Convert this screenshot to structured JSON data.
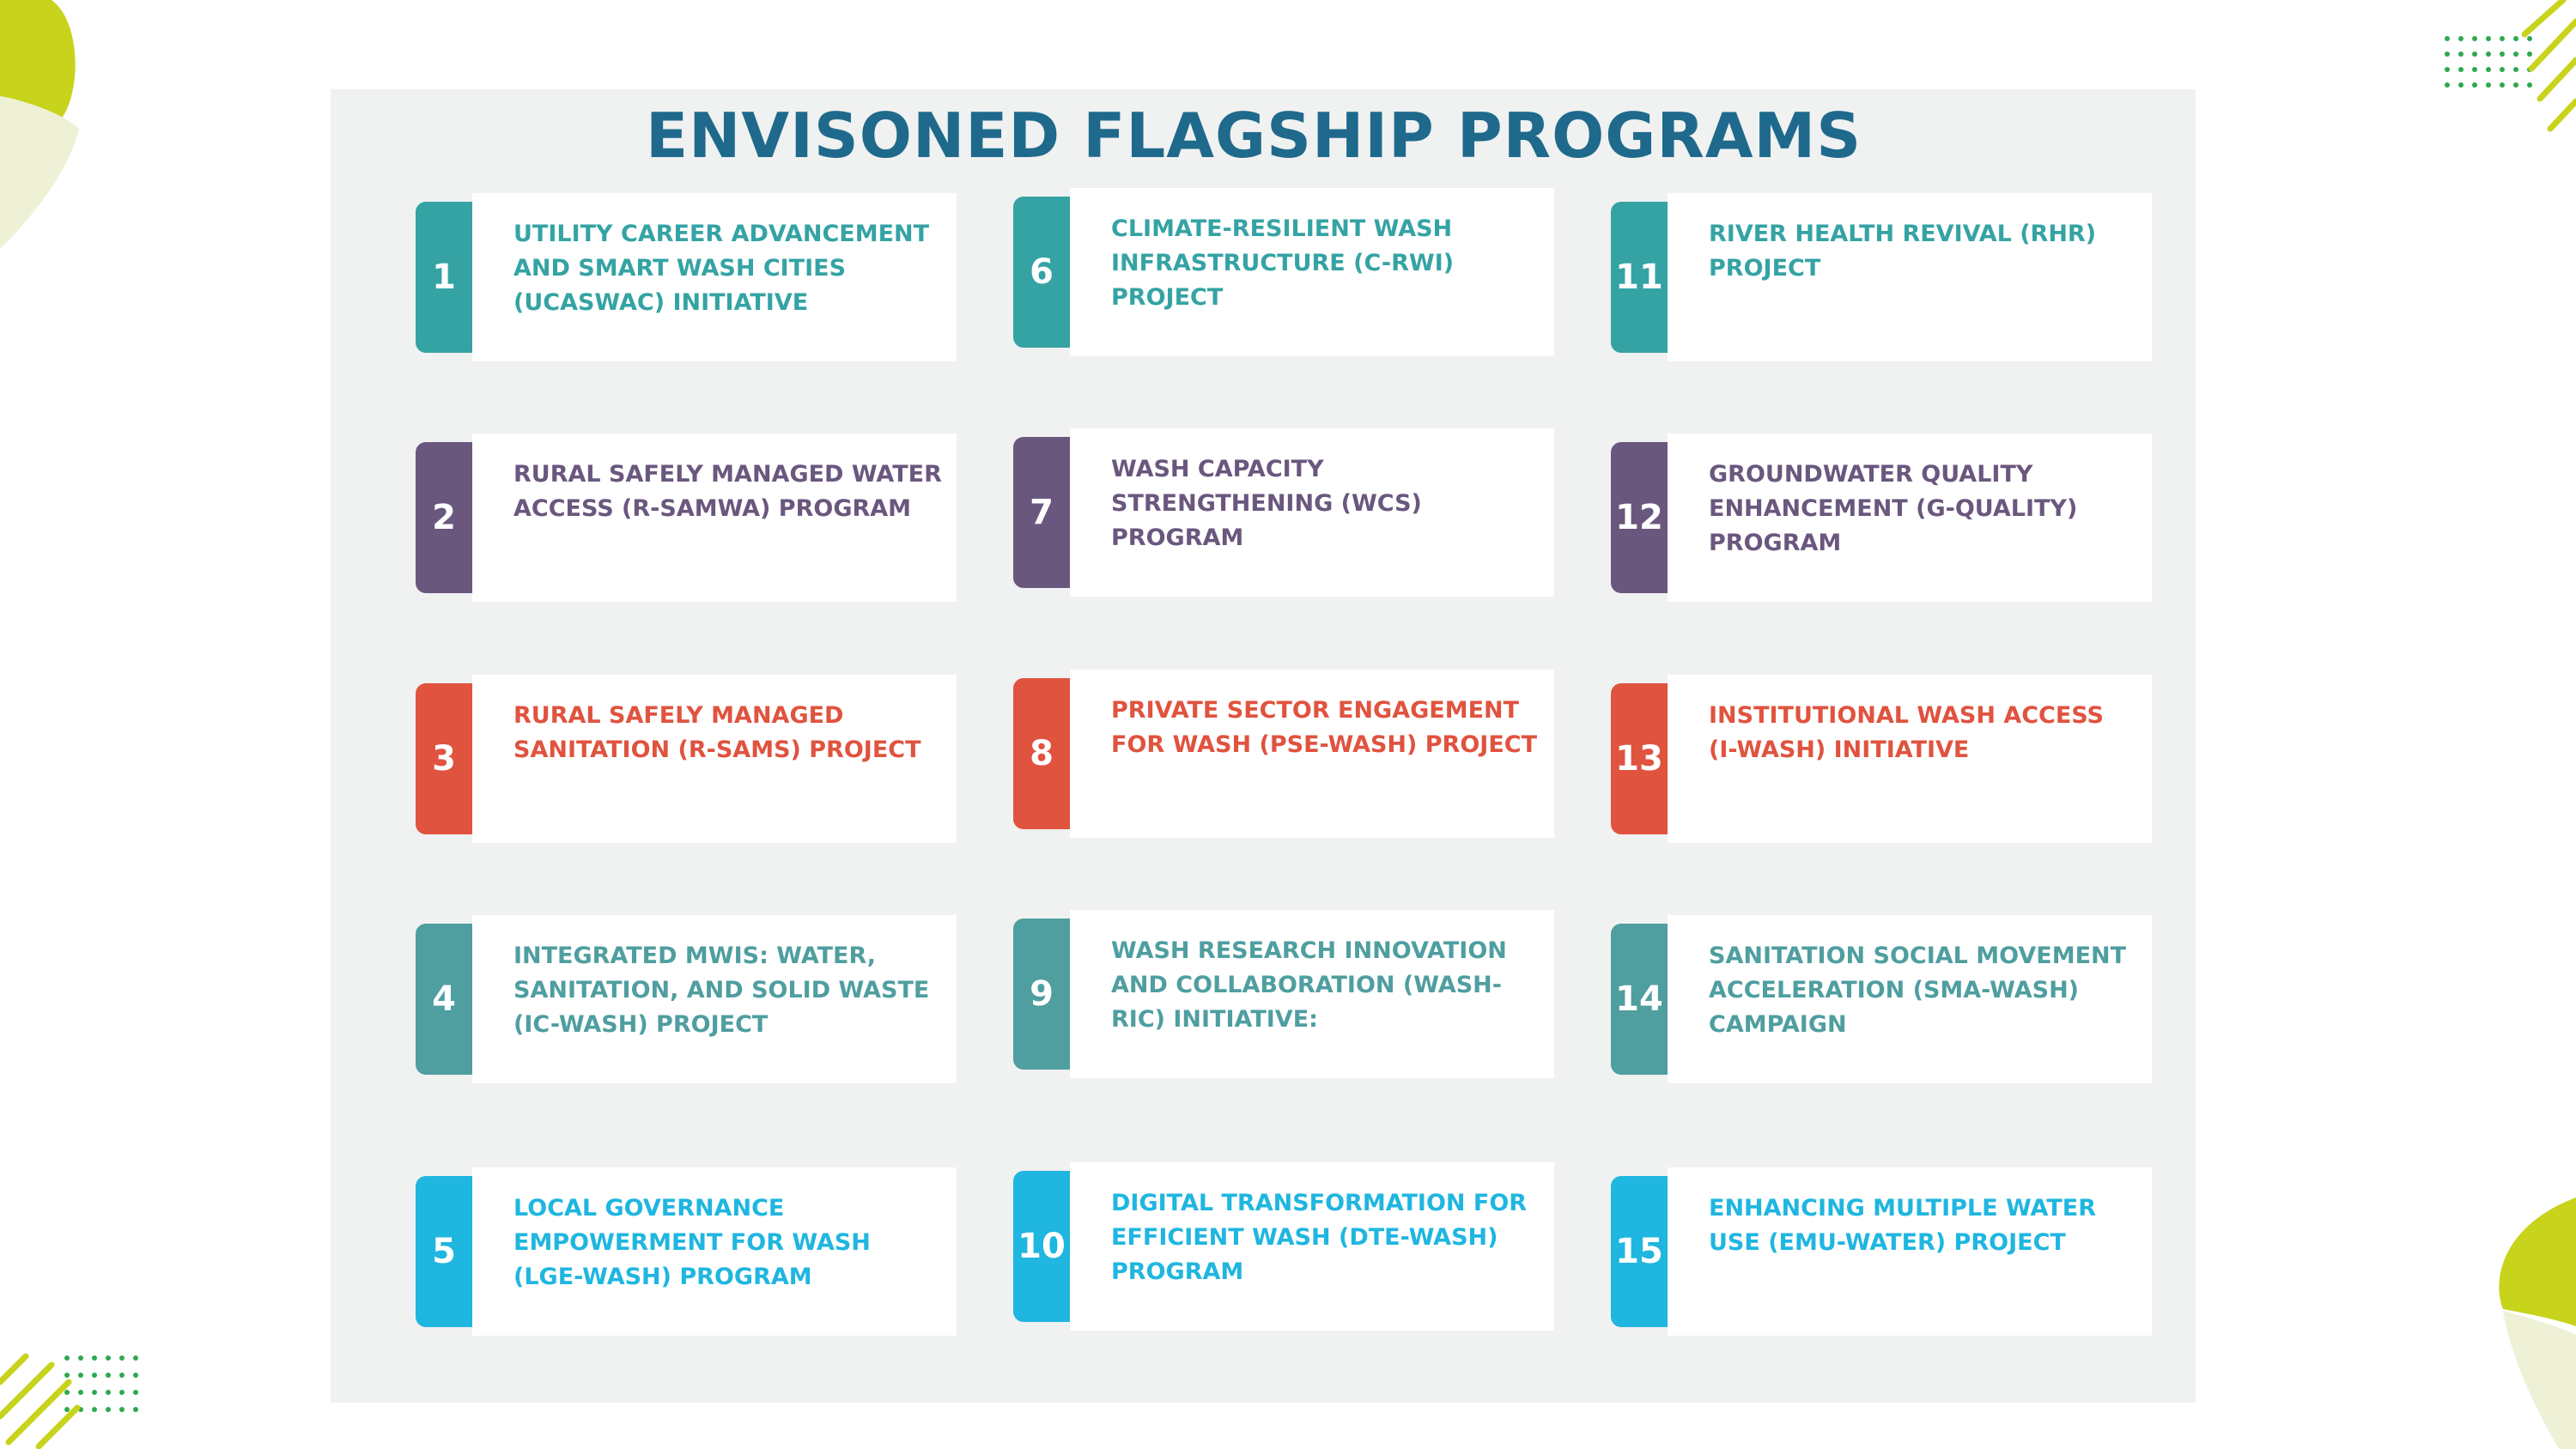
{
  "title": "ENVISONED FLAGSHIP PROGRAMS",
  "colors": {
    "teal": "#35a3a4",
    "purple": "#6a577e",
    "red": "#e0533f",
    "slate_teal": "#4f9ea0",
    "cyan": "#1fb6e0",
    "title": "#1f6a8c",
    "lime": "#c8d31c"
  },
  "programs": [
    {
      "number": "1",
      "label": "UTILITY CAREER ADVANCEMENT AND SMART WASH CITIES (UCASWAC) INITIATIVE"
    },
    {
      "number": "2",
      "label": "RURAL SAFELY MANAGED WATER ACCESS (R-SAMWA) PROGRAM"
    },
    {
      "number": "3",
      "label": "RURAL SAFELY MANAGED SANITATION (R-SAMS) PROJECT"
    },
    {
      "number": "4",
      "label": "INTEGRATED MWIS: WATER, SANITATION, AND SOLID WASTE (IC-WASH) PROJECT"
    },
    {
      "number": "5",
      "label": "LOCAL GOVERNANCE EMPOWERMENT FOR WASH (LGE-WASH) PROGRAM"
    },
    {
      "number": "6",
      "label": "CLIMATE-RESILIENT WASH INFRASTRUCTURE (C-RWI) PROJECT"
    },
    {
      "number": "7",
      "label": "WASH CAPACITY STRENGTHENING (WCS) PROGRAM"
    },
    {
      "number": "8",
      "label": "PRIVATE SECTOR ENGAGEMENT FOR WASH (PSE-WASH) PROJECT"
    },
    {
      "number": "9",
      "label": "WASH RESEARCH INNOVATION AND COLLABORATION (WASH-RIC) INITIATIVE:"
    },
    {
      "number": "10",
      "label": "DIGITAL TRANSFORMATION FOR EFFICIENT WASH (DTE-WASH) PROGRAM"
    },
    {
      "number": "11",
      "label": "RIVER HEALTH REVIVAL (RHR) PROJECT"
    },
    {
      "number": "12",
      "label": "GROUNDWATER QUALITY ENHANCEMENT (G-QUALITY) PROGRAM"
    },
    {
      "number": "13",
      "label": "INSTITUTIONAL WASH ACCESS (I-WASH) INITIATIVE"
    },
    {
      "number": "14",
      "label": "SANITATION SOCIAL MOVEMENT ACCELERATION (SMA-WASH) CAMPAIGN"
    },
    {
      "number": "15",
      "label": "ENHANCING MULTIPLE WATER USE (EMU-WATER) PROJECT"
    }
  ]
}
